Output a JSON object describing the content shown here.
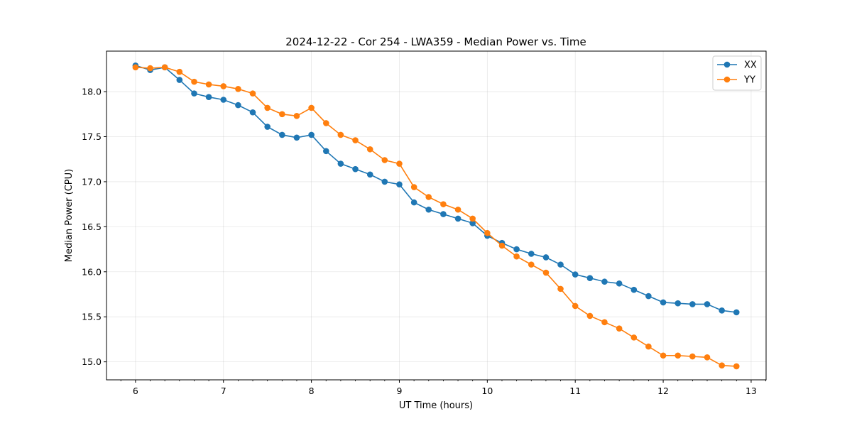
{
  "chart_data": {
    "type": "line",
    "title": "2024-12-22 - Cor 254 - LWA359 - Median Power vs. Time",
    "xlabel": "UT Time (hours)",
    "ylabel": "Median Power (CPU)",
    "xlim": [
      5.67,
      13.17
    ],
    "ylim": [
      14.8,
      18.45
    ],
    "xticks": [
      6,
      7,
      8,
      9,
      10,
      11,
      12,
      13
    ],
    "yticks": [
      15.0,
      15.5,
      16.0,
      16.5,
      17.0,
      17.5,
      18.0
    ],
    "xtick_labels": [
      "6",
      "7",
      "8",
      "9",
      "10",
      "11",
      "12",
      "13"
    ],
    "ytick_labels": [
      "15.0",
      "15.5",
      "16.0",
      "16.5",
      "17.0",
      "17.5",
      "18.0"
    ],
    "grid": true,
    "legend_position": "top-right",
    "x": [
      6.0,
      6.167,
      6.333,
      6.5,
      6.667,
      6.833,
      7.0,
      7.167,
      7.333,
      7.5,
      7.667,
      7.833,
      8.0,
      8.167,
      8.333,
      8.5,
      8.667,
      8.833,
      9.0,
      9.167,
      9.333,
      9.5,
      9.667,
      9.833,
      10.0,
      10.167,
      10.333,
      10.5,
      10.667,
      10.833,
      11.0,
      11.167,
      11.333,
      11.5,
      11.667,
      11.833,
      12.0,
      12.167,
      12.333,
      12.5,
      12.667,
      12.833
    ],
    "series": [
      {
        "name": "XX",
        "color": "#1f77b4",
        "values": [
          18.29,
          18.24,
          18.27,
          18.13,
          17.98,
          17.94,
          17.91,
          17.85,
          17.77,
          17.61,
          17.52,
          17.49,
          17.52,
          17.34,
          17.2,
          17.14,
          17.08,
          17.0,
          16.97,
          16.77,
          16.69,
          16.64,
          16.59,
          16.54,
          16.4,
          16.32,
          16.25,
          16.2,
          16.16,
          16.08,
          15.97,
          15.93,
          15.89,
          15.87,
          15.8,
          15.73,
          15.66,
          15.65,
          15.64,
          15.64,
          15.57,
          15.55
        ]
      },
      {
        "name": "YY",
        "color": "#ff7f0e",
        "values": [
          18.27,
          18.26,
          18.27,
          18.22,
          18.11,
          18.08,
          18.06,
          18.03,
          17.98,
          17.82,
          17.75,
          17.73,
          17.82,
          17.65,
          17.52,
          17.46,
          17.36,
          17.24,
          17.2,
          16.94,
          16.83,
          16.75,
          16.69,
          16.59,
          16.43,
          16.29,
          16.17,
          16.08,
          15.99,
          15.81,
          15.62,
          15.51,
          15.44,
          15.37,
          15.27,
          15.17,
          15.07,
          15.07,
          15.06,
          15.05,
          14.96,
          14.95
        ]
      }
    ]
  }
}
